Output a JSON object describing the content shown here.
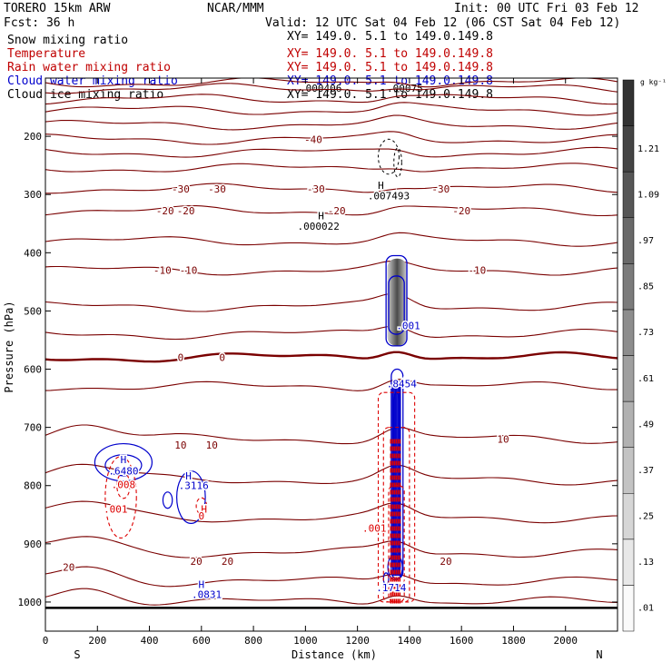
{
  "header": {
    "model": "TORERO  15km ARW",
    "org": "NCAR/MMM",
    "init": "Init: 00 UTC Fri 03 Feb 12",
    "fcst": "Fcst:    36 h",
    "valid": "Valid: 12 UTC Sat 04 Feb 12 (06 CST Sat 04 Feb 12)"
  },
  "legend_rows": [
    {
      "field": "Snow mixing ratio",
      "xy": "",
      "color": "#000000"
    },
    {
      "field": "Temperature",
      "xy": "XY= 149.0.   5.1 to 149.0.149.8",
      "color": "#c00000"
    },
    {
      "field": "Rain water mixing ratio",
      "xy": "XY= 149.0.   5.1 to 149.0.149.8",
      "color": "#c00000"
    },
    {
      "field": "Cloud water mixing ratio",
      "xy": "XY= 149.0.   5.1 to 149.0.149.8",
      "color": "#0000cc"
    },
    {
      "field": "Cloud ice mixing ratio",
      "xy": "XY= 149.0.   5.1 to 149.0.149.8",
      "color": "#000000"
    }
  ],
  "snow_xy": "XY= 149.0.   5.1 to 149.0.149.8",
  "overlap_labels": [
    ".000406",
    ".00075"
  ],
  "colors": {
    "temperature": "#7a0000",
    "rain": "#dd0000",
    "cloud_water": "#0000cc",
    "cloud_ice": "#000000",
    "ground": "#000000"
  },
  "chart_data": {
    "type": "cross-section",
    "title": "Snow mixing ratio",
    "xlabel": "Distance (km)",
    "ylabel": "Pressure (hPa)",
    "xlim": [
      0,
      2200
    ],
    "ylim": [
      1050,
      100
    ],
    "x_ticks": [
      0,
      200,
      400,
      600,
      800,
      1000,
      1200,
      1400,
      1600,
      1800,
      2000
    ],
    "y_ticks": [
      200,
      300,
      400,
      500,
      600,
      700,
      800,
      900,
      1000
    ],
    "direction_left": "S",
    "direction_right": "N",
    "colorbar": {
      "unit": "g kg⁻¹",
      "levels": [
        ".01",
        ".13",
        ".25",
        ".37",
        ".49",
        ".61",
        ".73",
        ".85",
        ".97",
        "1.09",
        "1.21"
      ]
    },
    "ground_pressure": 1010,
    "isotherms": [
      {
        "t": "-60",
        "p": 108
      },
      {
        "t": "-60",
        "p": 118
      },
      {
        "t": "-55",
        "p": 136
      },
      {
        "t": "-50",
        "p": 155
      },
      {
        "t": "-45",
        "p": 180
      },
      {
        "t": "-40",
        "p": 205
      },
      {
        "t": "-35",
        "p": 228
      },
      {
        "t": "-30",
        "p": 255
      },
      {
        "t": "-25",
        "p": 290
      },
      {
        "t": "-20",
        "p": 328
      },
      {
        "t": "-15",
        "p": 380
      },
      {
        "t": "-10",
        "p": 430
      },
      {
        "t": "-5",
        "p": 492
      },
      {
        "t": "-5",
        "p": 540
      },
      {
        "t": "0",
        "p": 580
      },
      {
        "t": "5",
        "p": 630
      },
      {
        "t": "10",
        "p": 720
      },
      {
        "t": "10",
        "p": 790
      },
      {
        "t": "15",
        "p": 855
      },
      {
        "t": "20",
        "p": 915
      },
      {
        "t": "20",
        "p": 965
      },
      {
        "t": "25",
        "p": 1000
      }
    ],
    "temperature_labels": [
      {
        "text": "-40",
        "x": 1030,
        "p": 205
      },
      {
        "text": "-30",
        "x": 520,
        "p": 290
      },
      {
        "text": "-30",
        "x": 660,
        "p": 290
      },
      {
        "text": "-30",
        "x": 1040,
        "p": 290
      },
      {
        "text": "-30",
        "x": 1520,
        "p": 290
      },
      {
        "text": "-20",
        "x": 460,
        "p": 328
      },
      {
        "text": "-20",
        "x": 540,
        "p": 328
      },
      {
        "text": "-20",
        "x": 1120,
        "p": 328
      },
      {
        "text": "-20",
        "x": 1600,
        "p": 328
      },
      {
        "text": "-10",
        "x": 450,
        "p": 430
      },
      {
        "text": "-10",
        "x": 550,
        "p": 430
      },
      {
        "text": "-10",
        "x": 1660,
        "p": 430
      },
      {
        "text": "0",
        "x": 520,
        "p": 580
      },
      {
        "text": "0",
        "x": 680,
        "p": 580
      },
      {
        "text": "10",
        "x": 520,
        "p": 730
      },
      {
        "text": "10",
        "x": 640,
        "p": 730
      },
      {
        "text": "10",
        "x": 1760,
        "p": 720
      },
      {
        "text": "20",
        "x": 90,
        "p": 940
      },
      {
        "text": "20",
        "x": 580,
        "p": 930
      },
      {
        "text": "20",
        "x": 700,
        "p": 930
      },
      {
        "text": "20",
        "x": 1540,
        "p": 930
      }
    ],
    "extrema": [
      {
        "text": "H",
        "x": 1290,
        "p": 284,
        "color": "#000000"
      },
      {
        "text": ".007493",
        "x": 1320,
        "p": 302,
        "color": "#000000"
      },
      {
        "text": "H",
        "x": 1060,
        "p": 336,
        "color": "#000000"
      },
      {
        "text": ".000022",
        "x": 1050,
        "p": 354,
        "color": "#000000"
      },
      {
        "text": ".001",
        "x": 1395,
        "p": 525,
        "color": "#0000cc"
      },
      {
        "text": ".8454",
        "x": 1370,
        "p": 625,
        "color": "#0000cc"
      },
      {
        "text": "H",
        "x": 300,
        "p": 755,
        "color": "#0000cc"
      },
      {
        "text": ".6480",
        "x": 300,
        "p": 775,
        "color": "#0000cc"
      },
      {
        "text": ".008",
        "x": 300,
        "p": 798,
        "color": "#dd0000"
      },
      {
        "text": ".001",
        "x": 270,
        "p": 840,
        "color": "#dd0000"
      },
      {
        "text": "H",
        "x": 550,
        "p": 783,
        "color": "#0000cc"
      },
      {
        "text": ".3116",
        "x": 570,
        "p": 800,
        "color": "#0000cc"
      },
      {
        "text": "H",
        "x": 610,
        "p": 840,
        "color": "#dd0000"
      },
      {
        "text": "0",
        "x": 600,
        "p": 852,
        "color": "#dd0000"
      },
      {
        "text": ".001",
        "x": 1265,
        "p": 873,
        "color": "#dd0000"
      },
      {
        "text": ".1714",
        "x": 1330,
        "p": 975,
        "color": "#0000cc"
      },
      {
        "text": "H",
        "x": 600,
        "p": 970,
        "color": "#0000cc"
      },
      {
        "text": ".0831",
        "x": 620,
        "p": 987,
        "color": "#0000cc"
      }
    ]
  }
}
